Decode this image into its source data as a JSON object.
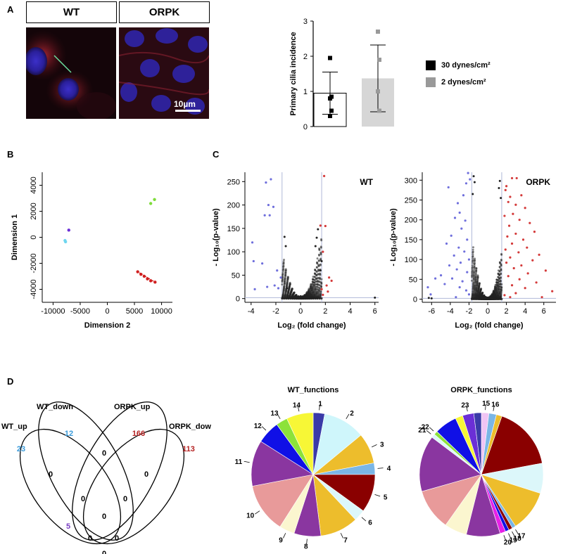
{
  "panel_labels": {
    "a": "A",
    "b": "B",
    "c": "C",
    "d": "D"
  },
  "microscopy": {
    "left_label": "WT",
    "right_label": "ORPK",
    "scale_bar": "10µm"
  },
  "colors": {
    "bar_30": "#000000",
    "bar_2": "#999999",
    "fill_30": "#ffffff",
    "fill_2": "#d6d6d6",
    "blue_pts": "#6f6fdc",
    "red_pts": "#d43a3a",
    "black_pts": "#222222",
    "venn_cyan": "#3a9ad9",
    "venn_red": "#b52222",
    "venn_purple": "#7a3ec2"
  },
  "chart_data": [
    {
      "type": "bar",
      "id": "cilia",
      "ylabel": "Primary cilia incidence",
      "ylim": [
        0,
        3
      ],
      "yticks": [
        "0",
        "1",
        "2",
        "3"
      ],
      "series": [
        {
          "name": "30 dynes/cm²",
          "value": 0.95,
          "sd": 0.6,
          "points": [
            1.95,
            0.85,
            0.8,
            0.45,
            0.3
          ]
        },
        {
          "name": "2 dynes/cm²",
          "value": 1.37,
          "sd": 0.95,
          "points": [
            2.7,
            1.9,
            1.0,
            0.45
          ]
        }
      ]
    },
    {
      "type": "scatter",
      "id": "mds",
      "xlabel": "Dimension 2",
      "ylabel": "Dimension 1",
      "xlim": [
        -12000,
        12000
      ],
      "ylim": [
        -5000,
        5000
      ],
      "xticks": [
        "-10000",
        "-5000",
        "0",
        "5000",
        "10000"
      ],
      "yticks": [
        "4000",
        "2000",
        "0",
        "-2000",
        "-4000"
      ],
      "groups": [
        {
          "color": "#7fdc3a",
          "points": [
            [
              8000,
              2600
            ],
            [
              8700,
              2900
            ]
          ]
        },
        {
          "color": "#6b2fd6",
          "points": [
            [
              -7100,
              550
            ]
          ]
        },
        {
          "color": "#6ed6ef",
          "points": [
            [
              -7800,
              -250
            ],
            [
              -7700,
              -350
            ]
          ]
        },
        {
          "color": "#d02020",
          "points": [
            [
              5600,
              -2650
            ],
            [
              6200,
              -2850
            ],
            [
              6800,
              -3000
            ],
            [
              7400,
              -3200
            ],
            [
              8000,
              -3350
            ],
            [
              8800,
              -3450
            ]
          ]
        }
      ]
    },
    {
      "type": "scatter",
      "id": "volcano_wt",
      "title": "WT",
      "xlabel": "Log₂ (fold change)",
      "ylabel": "- Log₁₀(p-value)",
      "xlim": [
        -4.5,
        6.3
      ],
      "ylim": [
        -8,
        270
      ],
      "xticks": [
        "-4",
        "-2",
        "0",
        "2",
        "4",
        "6"
      ],
      "yticks": [
        "0",
        "50",
        "100",
        "150",
        "200",
        "250"
      ],
      "thresholds": {
        "x": [
          -1.5,
          1.7
        ],
        "y": 2
      },
      "blue": [
        [
          -2.4,
          255
        ],
        [
          -2.8,
          248
        ],
        [
          -2.6,
          200
        ],
        [
          -2.2,
          196
        ],
        [
          -2.9,
          178
        ],
        [
          -2.5,
          178
        ],
        [
          -3.9,
          120
        ],
        [
          -3.8,
          80
        ],
        [
          -3.1,
          75
        ],
        [
          -1.9,
          60
        ],
        [
          -2.1,
          28
        ],
        [
          -2.7,
          25
        ],
        [
          -3.7,
          20
        ],
        [
          -1.6,
          45
        ],
        [
          -1.8,
          22
        ]
      ],
      "red": [
        [
          1.9,
          262
        ],
        [
          1.6,
          156
        ],
        [
          2.0,
          155
        ],
        [
          1.8,
          100
        ],
        [
          2.3,
          45
        ],
        [
          2.5,
          38
        ],
        [
          1.7,
          20
        ],
        [
          2.2,
          15
        ],
        [
          1.8,
          8
        ],
        [
          2.1,
          28
        ]
      ],
      "black": [
        [
          -1.3,
          132
        ],
        [
          -1.2,
          112
        ],
        [
          1.4,
          148
        ],
        [
          1.3,
          130
        ],
        [
          1.2,
          112
        ],
        [
          1.6,
          60
        ],
        [
          1.7,
          80
        ],
        [
          -1.1,
          22
        ],
        [
          0.0,
          5
        ],
        [
          6.0,
          2
        ]
      ]
    },
    {
      "type": "scatter",
      "id": "volcano_orpk",
      "title": "ORPK",
      "xlabel": "Log₂ (fold change)",
      "ylabel": "- Log₁₀(p-value)",
      "xlim": [
        -7,
        7.3
      ],
      "ylim": [
        -8,
        320
      ],
      "xticks": [
        "-6",
        "-4",
        "-2",
        "0",
        "2",
        "4",
        "6"
      ],
      "yticks": [
        "0",
        "50",
        "100",
        "150",
        "200",
        "250",
        "300"
      ],
      "thresholds": {
        "x": [
          -1.7,
          1.5
        ],
        "y": 2
      },
      "blue": [
        [
          -2.1,
          318
        ],
        [
          -1.9,
          302
        ],
        [
          -2.3,
          292
        ],
        [
          -4.2,
          282
        ],
        [
          -2.6,
          262
        ],
        [
          -3.2,
          242
        ],
        [
          -3.0,
          218
        ],
        [
          -3.5,
          205
        ],
        [
          -2.4,
          198
        ],
        [
          -2.8,
          178
        ],
        [
          -3.9,
          160
        ],
        [
          -2.2,
          150
        ],
        [
          -4.4,
          140
        ],
        [
          -3.1,
          130
        ],
        [
          -2.5,
          120
        ],
        [
          -3.6,
          110
        ],
        [
          -2.0,
          100
        ],
        [
          -2.9,
          92
        ],
        [
          -4.1,
          85
        ],
        [
          -3.3,
          75
        ],
        [
          -2.2,
          68
        ],
        [
          -5.0,
          60
        ],
        [
          -3.8,
          52
        ],
        [
          -2.7,
          45
        ],
        [
          -4.6,
          38
        ],
        [
          -3.0,
          30
        ],
        [
          -2.3,
          22
        ],
        [
          -5.6,
          52
        ],
        [
          -6.4,
          30
        ],
        [
          -6.1,
          12
        ],
        [
          -2.0,
          12
        ],
        [
          -3.4,
          5
        ]
      ],
      "red": [
        [
          2.6,
          305
        ],
        [
          3.1,
          305
        ],
        [
          2.0,
          285
        ],
        [
          1.9,
          275
        ],
        [
          3.6,
          262
        ],
        [
          2.4,
          258
        ],
        [
          2.2,
          245
        ],
        [
          3.0,
          238
        ],
        [
          4.0,
          230
        ],
        [
          2.7,
          215
        ],
        [
          1.8,
          210
        ],
        [
          3.4,
          200
        ],
        [
          4.5,
          192
        ],
        [
          2.3,
          185
        ],
        [
          5.0,
          170
        ],
        [
          3.0,
          165
        ],
        [
          2.1,
          158
        ],
        [
          3.8,
          150
        ],
        [
          2.6,
          140
        ],
        [
          4.2,
          130
        ],
        [
          1.9,
          125
        ],
        [
          3.3,
          118
        ],
        [
          5.5,
          112
        ],
        [
          2.4,
          105
        ],
        [
          4.8,
          98
        ],
        [
          2.0,
          92
        ],
        [
          3.6,
          85
        ],
        [
          2.8,
          78
        ],
        [
          6.2,
          72
        ],
        [
          4.3,
          65
        ],
        [
          2.2,
          58
        ],
        [
          3.4,
          50
        ],
        [
          5.2,
          42
        ],
        [
          2.6,
          35
        ],
        [
          4.0,
          28
        ],
        [
          6.9,
          20
        ],
        [
          3.0,
          15
        ],
        [
          1.8,
          10
        ],
        [
          5.8,
          5
        ],
        [
          2.4,
          5
        ]
      ],
      "black": [
        [
          -1.5,
          310
        ],
        [
          -1.4,
          295
        ],
        [
          1.3,
          298
        ],
        [
          1.2,
          280
        ],
        [
          -1.6,
          265
        ],
        [
          1.4,
          255
        ],
        [
          -6.3,
          3
        ],
        [
          -6.0,
          2
        ]
      ]
    },
    {
      "type": "pie",
      "id": "wt_functions",
      "title": "WT_functions",
      "slices": [
        {
          "label": "1",
          "value": 3,
          "color": "#3a3aa8"
        },
        {
          "label": "2",
          "value": 11,
          "color": "#cff6fb"
        },
        {
          "label": "3",
          "value": 8,
          "color": "#edbd2c"
        },
        {
          "label": "4",
          "value": 3,
          "color": "#7ab6e6"
        },
        {
          "label": "5",
          "value": 10,
          "color": "#8a0000"
        },
        {
          "label": "6",
          "value": 3,
          "color": "#dcf7fa"
        },
        {
          "label": "7",
          "value": 10,
          "color": "#edbd2c"
        },
        {
          "label": "8",
          "value": 7,
          "color": "#8a36a0"
        },
        {
          "label": "9",
          "value": 4,
          "color": "#fbf6cf"
        },
        {
          "label": "10",
          "value": 13,
          "color": "#e89a9a"
        },
        {
          "label": "11",
          "value": 12,
          "color": "#8a36a0"
        },
        {
          "label": "12",
          "value": 6,
          "color": "#1010e6"
        },
        {
          "label": "13",
          "value": 3,
          "color": "#8ce23a"
        },
        {
          "label": "14",
          "value": 7,
          "color": "#f7f736"
        }
      ]
    },
    {
      "type": "pie",
      "id": "orpk_functions",
      "title": "ORPK_functions",
      "slices": [
        {
          "label": "15",
          "value": 2,
          "color": "#f0c4f4"
        },
        {
          "label": "16",
          "value": 2,
          "color": "#7ab6e6"
        },
        {
          "label": "",
          "value": 1.5,
          "color": "#edbd2c"
        },
        {
          "label": "",
          "value": 17,
          "color": "#8a0000"
        },
        {
          "label": "",
          "value": 8,
          "color": "#dcf7fa"
        },
        {
          "label": "",
          "value": 11,
          "color": "#edbd2c"
        },
        {
          "label": "17",
          "value": 1,
          "color": "#7ab6e6"
        },
        {
          "label": "18",
          "value": 1,
          "color": "#8a0000"
        },
        {
          "label": "19",
          "value": 1,
          "color": "#1010e6"
        },
        {
          "label": "20",
          "value": 1.5,
          "color": "#e620e6"
        },
        {
          "label": "",
          "value": 9,
          "color": "#8a36a0"
        },
        {
          "label": "",
          "value": 6,
          "color": "#fbf6cf"
        },
        {
          "label": "",
          "value": 11,
          "color": "#e89a9a"
        },
        {
          "label": "",
          "value": 15,
          "color": "#8a36a0"
        },
        {
          "label": "21",
          "value": 1,
          "color": "#dcf7fa"
        },
        {
          "label": "22",
          "value": 1,
          "color": "#8ce23a"
        },
        {
          "label": "",
          "value": 6,
          "color": "#1010e6"
        },
        {
          "label": "",
          "value": 2,
          "color": "#f7f736"
        },
        {
          "label": "23",
          "value": 3,
          "color": "#6b2fd6"
        },
        {
          "label": "",
          "value": 2,
          "color": "#3a3aa8"
        }
      ]
    }
  ],
  "venn": {
    "labels": {
      "wt_up": "WT_up",
      "wt_down": "WT_down",
      "orpk_up": "ORPK_up",
      "orpk_down": "ORPK_down"
    },
    "counts": {
      "wt_up_only": "23",
      "wt_down_only": "12",
      "orpk_up_only": "166",
      "orpk_down_only": "113",
      "z1": "0",
      "z2": "0",
      "z3": "0",
      "z4": "0",
      "z5": "0",
      "z6": "0",
      "z7": "0",
      "wt_up_orpk_down": "5",
      "wt_down_orpk_up": "12",
      "z8": "0",
      "z9": "0",
      "z10": "0",
      "z11": "0"
    }
  }
}
